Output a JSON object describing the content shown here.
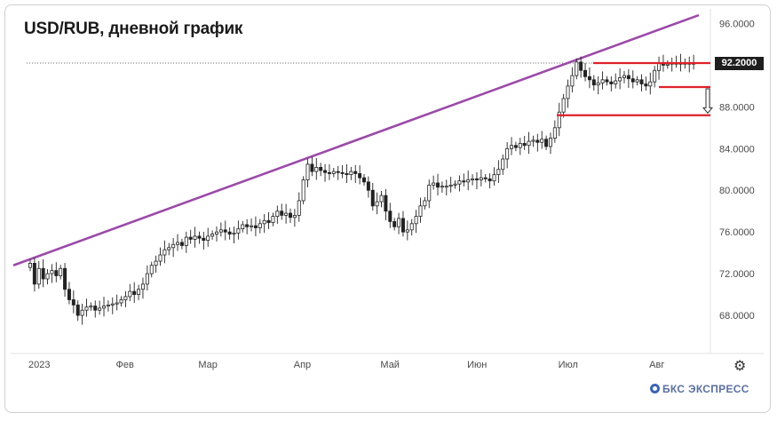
{
  "title": "USD/RUB, дневной график",
  "brand": "БКС ЭКСПРЕСС",
  "settings_icon": "gear-icon",
  "colors": {
    "trendline": "#9b4aa8",
    "levels": "#e0202a",
    "candle_outline": "#222222",
    "price_badge": "#1e1e1e"
  },
  "chart_data": {
    "type": "candlestick",
    "title": "USD/RUB, дневной график",
    "x_ticks": [
      "2023",
      "Фев",
      "Мар",
      "Апр",
      "Май",
      "Июн",
      "Июл",
      "Авг"
    ],
    "y_ticks": [
      "96.0000",
      "92.0000",
      "88.0000",
      "84.0000",
      "80.0000",
      "76.0000",
      "72.0000",
      "68.0000"
    ],
    "y_tick_values": [
      96,
      92,
      88,
      84,
      80,
      76,
      72,
      68
    ],
    "ylim": [
      64.6,
      97.4
    ],
    "last_price": 92.2,
    "last_price_label": "92.2000",
    "months": [
      {
        "label": "2023",
        "days": 21
      },
      {
        "label": "Фев",
        "days": 19
      },
      {
        "label": "Мар",
        "days": 22
      },
      {
        "label": "Апр",
        "days": 20
      },
      {
        "label": "Май",
        "days": 20
      },
      {
        "label": "Июн",
        "days": 21
      },
      {
        "label": "Июл",
        "days": 21
      },
      {
        "label": "Авг",
        "days": 10
      }
    ],
    "close_series": [
      73.0,
      71.0,
      72.5,
      71.5,
      72.0,
      72.3,
      71.8,
      72.5,
      70.5,
      69.5,
      69.0,
      68.0,
      68.5,
      68.8,
      68.9,
      68.5,
      68.7,
      68.9,
      69.0,
      69.1,
      69.2,
      69.5,
      69.8,
      70.3,
      70.0,
      70.5,
      71.0,
      72.0,
      72.8,
      73.2,
      73.8,
      74.3,
      74.5,
      74.8,
      75.0,
      74.7,
      75.5,
      75.3,
      75.6,
      75.4,
      75.2,
      75.6,
      75.8,
      76.0,
      76.2,
      76.0,
      75.8,
      75.9,
      76.3,
      76.7,
      76.5,
      76.6,
      76.4,
      76.8,
      77.1,
      76.9,
      77.5,
      78.0,
      77.6,
      77.8,
      77.4,
      77.6,
      79.0,
      81.0,
      82.5,
      81.8,
      82.2,
      81.9,
      81.7,
      81.6,
      81.8,
      81.7,
      81.6,
      81.5,
      81.8,
      81.6,
      81.2,
      80.8,
      80.0,
      78.5,
      78.9,
      79.5,
      78.0,
      77.0,
      76.5,
      77.3,
      76.0,
      76.2,
      76.8,
      77.5,
      78.5,
      79.0,
      80.5,
      80.7,
      80.3,
      80.4,
      80.4,
      80.5,
      80.6,
      80.9,
      80.8,
      81.0,
      81.1,
      81.0,
      81.2,
      81.1,
      80.9,
      81.5,
      82.0,
      83.0,
      84.0,
      84.3,
      84.1,
      84.5,
      84.3,
      84.7,
      84.8,
      84.6,
      84.9,
      84.2,
      85.0,
      86.0,
      87.5,
      88.8,
      90.0,
      91.0,
      92.3,
      91.5,
      90.9,
      90.6,
      90.1,
      90.3,
      90.6,
      90.4,
      90.2,
      90.5,
      90.8,
      91.0,
      90.7,
      90.4,
      90.6,
      90.2,
      90.0,
      90.4,
      91.5,
      92.2,
      92.0,
      92.1,
      92.2,
      92.2,
      92.2,
      92.2,
      92.2,
      92.2
    ],
    "trendline_y_start": 72.8,
    "trendline_y_end": 96.8,
    "levels": [
      {
        "label": "",
        "value": 92.2,
        "color": "#e0202a"
      },
      {
        "label": "",
        "value": 89.9,
        "color": "#e0202a"
      },
      {
        "label": "",
        "value": 87.2,
        "color": "#e0202a"
      }
    ],
    "arrow_from": 89.9,
    "arrow_to": 87.4,
    "grid": false,
    "legend": "none"
  }
}
